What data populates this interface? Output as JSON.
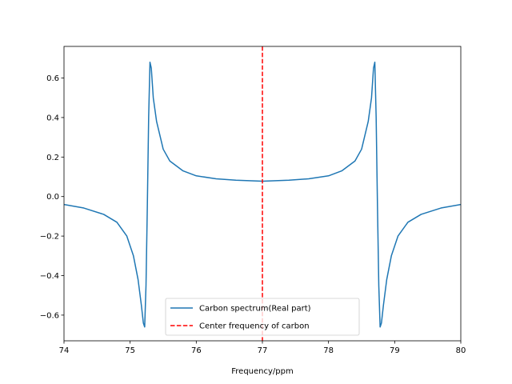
{
  "chart_data": {
    "type": "line",
    "title": "",
    "xlabel": "Frequency/ppm",
    "ylabel": "",
    "xlim": [
      74,
      80
    ],
    "ylim": [
      -0.73,
      0.76
    ],
    "x_ticks": [
      74,
      75,
      76,
      77,
      78,
      79,
      80
    ],
    "x_tick_labels": [
      "74",
      "75",
      "76",
      "77",
      "78",
      "79",
      "80"
    ],
    "y_ticks": [
      -0.6,
      -0.4,
      -0.2,
      0.0,
      0.2,
      0.4,
      0.6
    ],
    "y_tick_labels": [
      "−0.6",
      "−0.4",
      "−0.2",
      "0.0",
      "0.2",
      "0.4",
      "0.6"
    ],
    "grid": false,
    "legend_position": "lower center",
    "series": [
      {
        "name": "Carbon spectrum(Real part)",
        "color": "#1f77b4",
        "line_style": "solid",
        "x": [
          74.0,
          74.3,
          74.6,
          74.8,
          74.95,
          75.05,
          75.12,
          75.17,
          75.2,
          75.22,
          75.24,
          75.26,
          75.28,
          75.3,
          75.32,
          75.35,
          75.4,
          75.5,
          75.6,
          75.8,
          76.0,
          76.3,
          76.6,
          77.0,
          77.4,
          77.7,
          78.0,
          78.2,
          78.4,
          78.5,
          78.6,
          78.65,
          78.68,
          78.7,
          78.72,
          78.74,
          78.76,
          78.78,
          78.8,
          78.83,
          78.88,
          78.95,
          79.05,
          79.2,
          79.4,
          79.7,
          80.0
        ],
        "y": [
          -0.04,
          -0.058,
          -0.09,
          -0.13,
          -0.2,
          -0.3,
          -0.42,
          -0.55,
          -0.64,
          -0.66,
          -0.45,
          -0.05,
          0.4,
          0.68,
          0.65,
          0.5,
          0.38,
          0.24,
          0.18,
          0.13,
          0.105,
          0.09,
          0.083,
          0.078,
          0.083,
          0.09,
          0.105,
          0.13,
          0.18,
          0.24,
          0.38,
          0.5,
          0.65,
          0.68,
          0.4,
          -0.05,
          -0.45,
          -0.66,
          -0.64,
          -0.55,
          -0.42,
          -0.3,
          -0.2,
          -0.13,
          -0.09,
          -0.058,
          -0.04
        ]
      },
      {
        "name": "Center frequency of carbon",
        "color": "#ff0000",
        "line_style": "dashed",
        "x_value": 77.0
      }
    ]
  }
}
